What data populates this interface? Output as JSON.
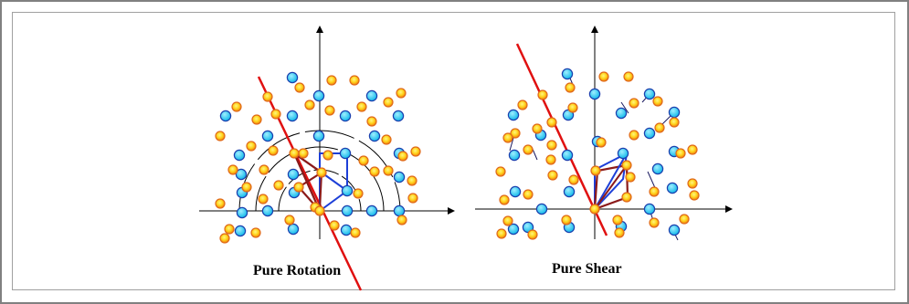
{
  "panels": [
    {
      "id": "rotation",
      "caption": "Pure Rotation"
    },
    {
      "id": "shear",
      "caption": "Pure Shear"
    }
  ],
  "colors": {
    "frame_border": "#808080",
    "axis": "#000000",
    "red_line": "#e01010",
    "blue_point_fill": "#19c3ef",
    "blue_point_stroke": "#1a3fae",
    "orange_point_fill": "#ffe81a",
    "orange_point_stroke": "#e06a1a",
    "blue_outline": "#1d3fd8",
    "brown_outline": "#8b1a1a",
    "arc": "#000000"
  }
}
